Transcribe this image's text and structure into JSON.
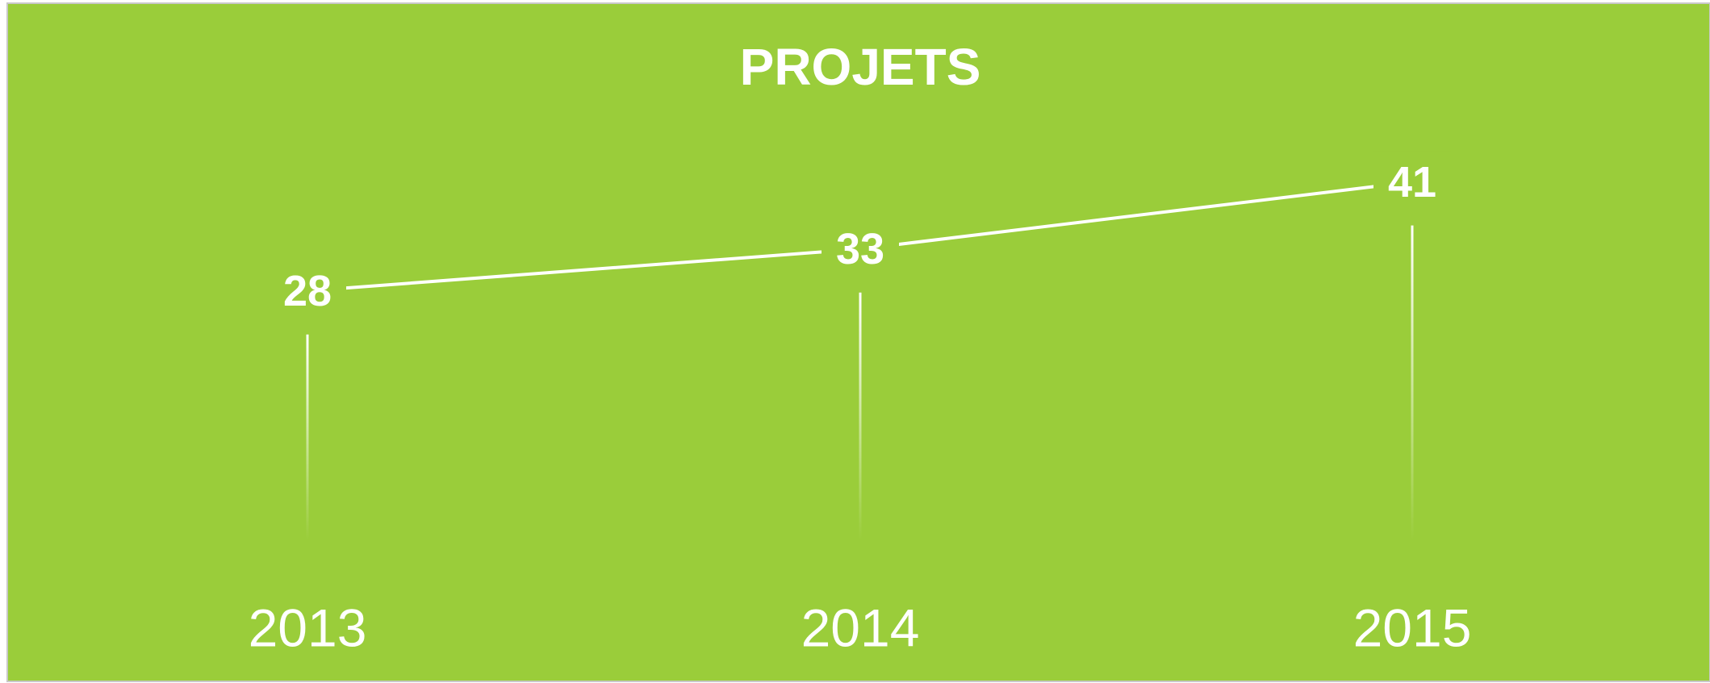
{
  "chart_data": {
    "type": "line",
    "title": "PROJETS",
    "categories": [
      "2013",
      "2014",
      "2015"
    ],
    "series": [
      {
        "values": [
          28,
          33,
          41
        ],
        "color": "#ffffff"
      }
    ],
    "background": "#9acd3a",
    "ylim": [
      0,
      50
    ]
  }
}
